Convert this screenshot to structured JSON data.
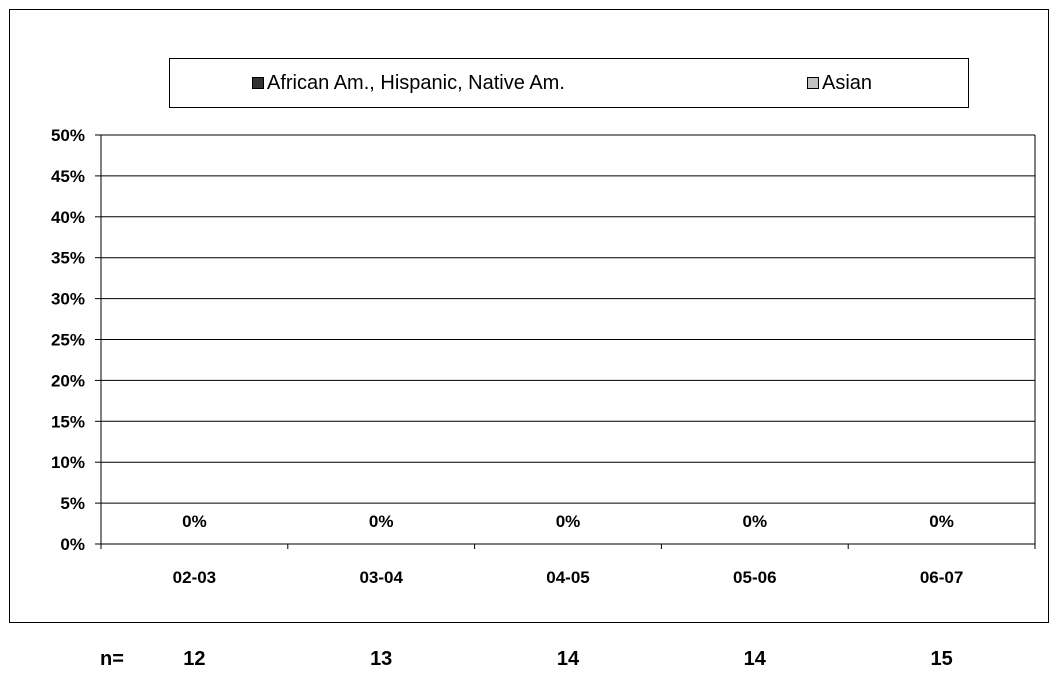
{
  "chart_data": {
    "type": "bar",
    "categories": [
      "02-03",
      "03-04",
      "04-05",
      "05-06",
      "06-07"
    ],
    "series": [
      {
        "name": "African Am., Hispanic, Native Am.",
        "color": "#333333",
        "values": [
          0,
          0,
          0,
          0,
          0
        ]
      },
      {
        "name": "Asian",
        "color": "#c0c0c0",
        "values": [
          0,
          0,
          0,
          0,
          0
        ]
      }
    ],
    "data_labels": [
      "0%",
      "0%",
      "0%",
      "0%",
      "0%"
    ],
    "yticks": [
      "0%",
      "5%",
      "10%",
      "15%",
      "20%",
      "25%",
      "30%",
      "35%",
      "40%",
      "45%",
      "50%"
    ],
    "ylim": [
      0,
      50
    ],
    "grid": true,
    "legend_position": "top"
  },
  "n_row": {
    "label": "n=",
    "values": [
      "12",
      "13",
      "14",
      "14",
      "15"
    ]
  }
}
